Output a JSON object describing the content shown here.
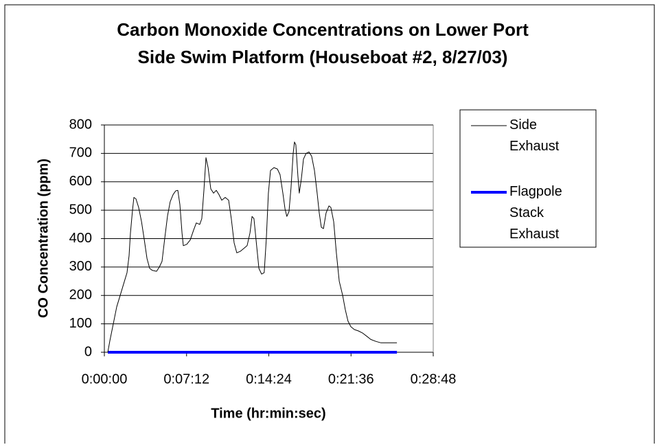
{
  "chart_data": {
    "type": "line",
    "title": "Carbon Monoxide Concentrations on Lower Port Side Swim Platform (Houseboat #2, 8/27/03)",
    "xlabel": "Time (hr:min:sec)",
    "ylabel": "CO Concentration (ppm)",
    "xlim": [
      0,
      1728
    ],
    "xticks": [
      {
        "value": 0,
        "label": "0:00:00"
      },
      {
        "value": 432,
        "label": "0:07:12"
      },
      {
        "value": 864,
        "label": "0:14:24"
      },
      {
        "value": 1296,
        "label": "0:21:36"
      },
      {
        "value": 1728,
        "label": "0:28:48"
      }
    ],
    "ylim": [
      0,
      800
    ],
    "yticks": [
      0,
      100,
      200,
      300,
      400,
      500,
      600,
      700,
      800
    ],
    "grid": true,
    "legend": "right",
    "series": [
      {
        "name": "Side Exhaust",
        "color": "#000000",
        "x": [
          18,
          29,
          47,
          65,
          83,
          101,
          119,
          130,
          137,
          148,
          155,
          166,
          180,
          195,
          209,
          224,
          238,
          252,
          274,
          289,
          303,
          317,
          332,
          346,
          361,
          375,
          386,
          397,
          408,
          415,
          433,
          451,
          469,
          483,
          501,
          512,
          523,
          534,
          545,
          559,
          574,
          588,
          602,
          617,
          635,
          653,
          667,
          682,
          696,
          714,
          732,
          750,
          765,
          776,
          786,
          801,
          812,
          826,
          840,
          851,
          862,
          873,
          891,
          909,
          923,
          938,
          949,
          959,
          970,
          981,
          992,
          999,
          1006,
          1017,
          1024,
          1035,
          1046,
          1060,
          1075,
          1089,
          1104,
          1118,
          1129,
          1140,
          1151,
          1165,
          1180,
          1190,
          1205,
          1219,
          1234,
          1252,
          1266,
          1280,
          1295,
          1313,
          1335,
          1356,
          1381,
          1400,
          1428,
          1454,
          1479,
          1537
        ],
        "values": [
          0,
          40,
          100,
          160,
          200,
          240,
          280,
          340,
          420,
          500,
          545,
          540,
          510,
          460,
          400,
          330,
          295,
          288,
          285,
          300,
          320,
          400,
          480,
          530,
          555,
          568,
          570,
          520,
          420,
          375,
          380,
          395,
          430,
          455,
          450,
          470,
          570,
          685,
          650,
          575,
          560,
          570,
          555,
          535,
          545,
          535,
          470,
          385,
          350,
          355,
          365,
          375,
          420,
          478,
          470,
          370,
          295,
          275,
          280,
          400,
          560,
          640,
          650,
          645,
          625,
          560,
          505,
          478,
          495,
          580,
          700,
          740,
          730,
          620,
          560,
          610,
          680,
          700,
          705,
          690,
          640,
          560,
          490,
          440,
          435,
          490,
          515,
          510,
          460,
          350,
          250,
          200,
          150,
          110,
          90,
          80,
          75,
          68,
          55,
          45,
          38,
          33,
          33,
          33
        ]
      },
      {
        "name": "Flagpole Stack Exhaust",
        "color": "#0000ff",
        "x": [
          18,
          1537
        ],
        "values": [
          0,
          0
        ]
      }
    ]
  }
}
